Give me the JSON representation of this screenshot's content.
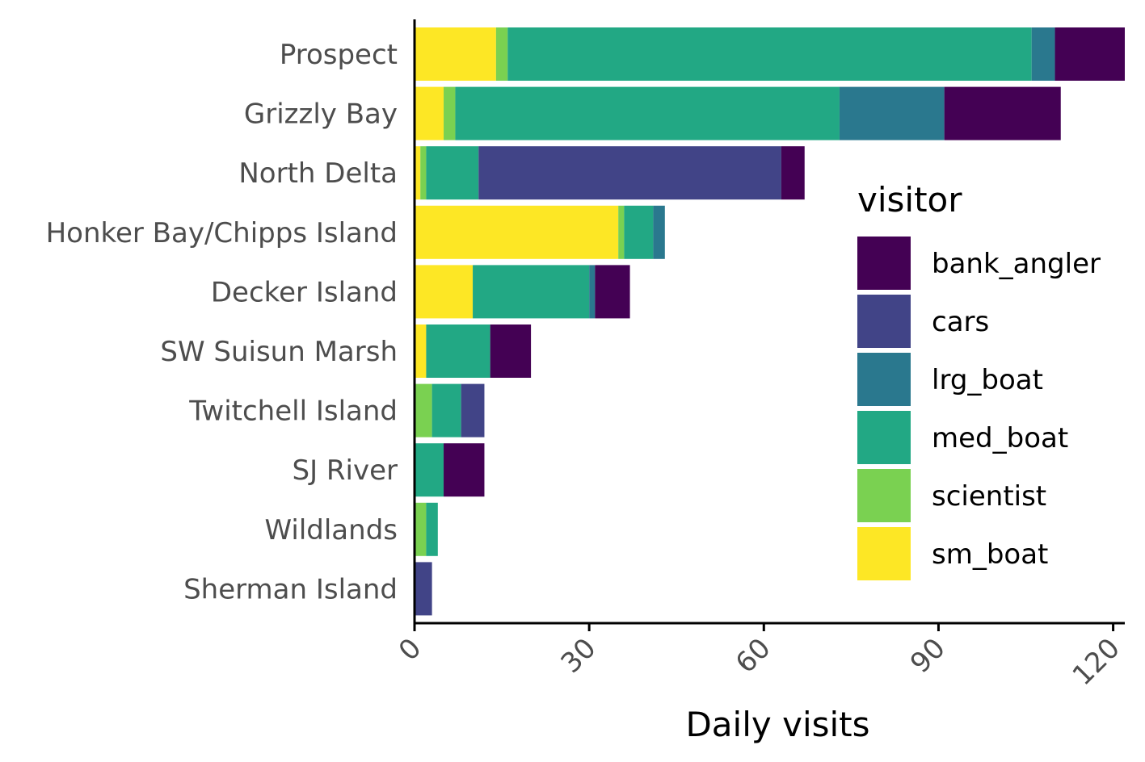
{
  "chart_data": {
    "type": "bar",
    "orientation": "horizontal",
    "stacked": true,
    "title": "",
    "xlabel": "Daily visits",
    "ylabel": "",
    "xlim": [
      0,
      122
    ],
    "x_ticks": [
      "0",
      "30",
      "60",
      "90",
      "120"
    ],
    "x_tick_values": [
      0,
      30,
      60,
      90,
      120
    ],
    "categories": [
      "Prospect",
      "Grizzly Bay",
      "North Delta",
      "Honker Bay/Chipps Island",
      "Decker Island",
      "SW Suisun Marsh",
      "Twitchell Island",
      "SJ River",
      "Wildlands",
      "Sherman Island"
    ],
    "stack_order": [
      "sm_boat",
      "scientist",
      "med_boat",
      "lrg_boat",
      "cars",
      "bank_angler"
    ],
    "series": [
      {
        "name": "sm_boat",
        "color": "#FDE725",
        "values": [
          14,
          5,
          1,
          35,
          10,
          2,
          0,
          0,
          0,
          0
        ]
      },
      {
        "name": "scientist",
        "color": "#7AD151",
        "values": [
          2,
          2,
          1,
          1,
          0,
          0,
          3,
          0,
          2,
          0
        ]
      },
      {
        "name": "med_boat",
        "color": "#22A884",
        "values": [
          90,
          66,
          9,
          5,
          20,
          11,
          5,
          5,
          2,
          0
        ]
      },
      {
        "name": "lrg_boat",
        "color": "#2A788E",
        "values": [
          4,
          18,
          0,
          2,
          1,
          0,
          0,
          0,
          0,
          0
        ]
      },
      {
        "name": "cars",
        "color": "#414487",
        "values": [
          0,
          0,
          52,
          0,
          0,
          0,
          4,
          0,
          0,
          3
        ]
      },
      {
        "name": "bank_angler",
        "color": "#440154",
        "values": [
          12,
          20,
          4,
          0,
          6,
          7,
          0,
          7,
          0,
          0
        ]
      }
    ],
    "legend": {
      "title": "visitor",
      "position": "right, inside plot",
      "entries": [
        "bank_angler",
        "cars",
        "lrg_boat",
        "med_boat",
        "scientist",
        "sm_boat"
      ]
    },
    "grid": false
  }
}
